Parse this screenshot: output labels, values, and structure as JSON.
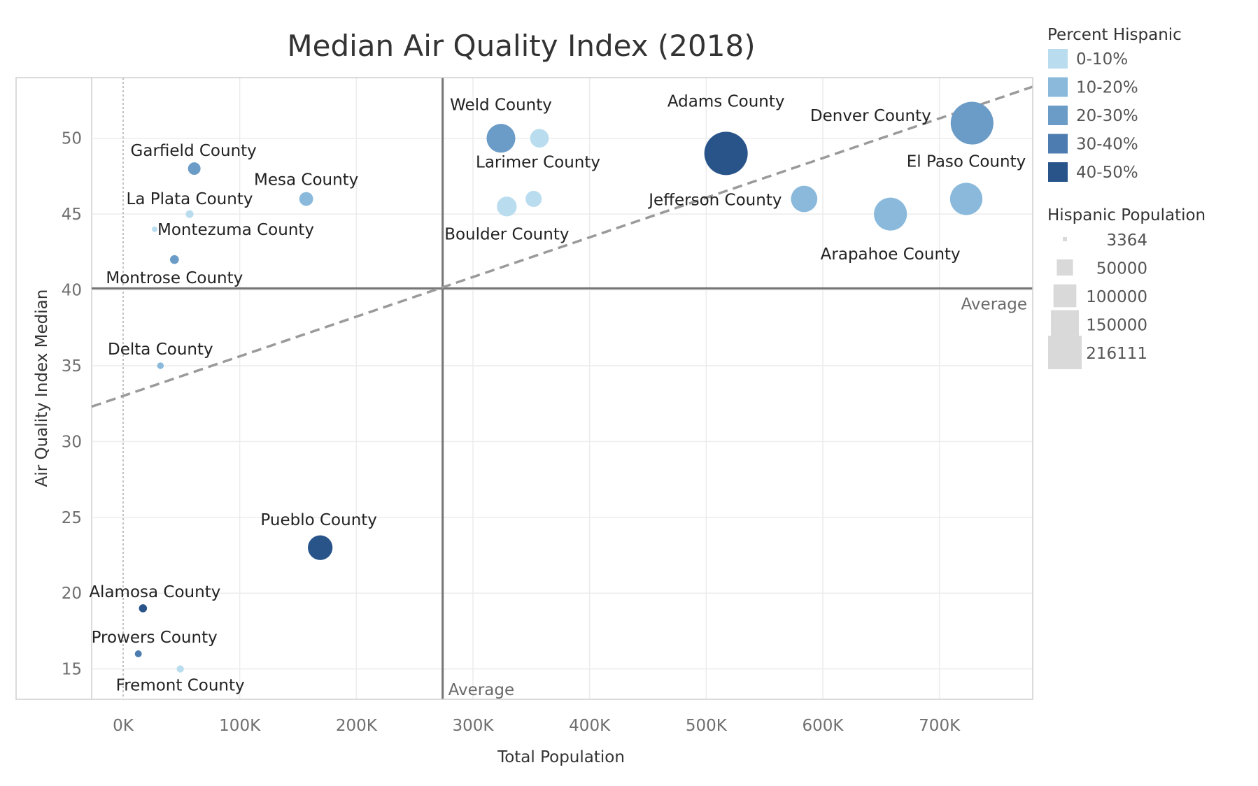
{
  "chart_data": {
    "type": "scatter",
    "title": "Median Air Quality Index (2018)",
    "xlabel": "Total Population",
    "ylabel": "Air Quality Index Median",
    "xlim": [
      -27000,
      780000
    ],
    "ylim": [
      13,
      54
    ],
    "x_ticks": [
      0,
      100000,
      200000,
      300000,
      400000,
      500000,
      600000,
      700000
    ],
    "x_tick_labels": [
      "0K",
      "100K",
      "200K",
      "300K",
      "400K",
      "500K",
      "600K",
      "700K"
    ],
    "y_ticks": [
      15,
      20,
      25,
      30,
      35,
      40,
      45,
      50
    ],
    "y_tick_labels": [
      "15",
      "20",
      "25",
      "30",
      "35",
      "40",
      "45",
      "50"
    ],
    "grid": true,
    "reference_lines": {
      "x_average": 274000,
      "y_average": 40.1,
      "x_label": "Average",
      "y_label": "Average"
    },
    "trend_line": {
      "x_start": -27000,
      "y_start": 32.3,
      "x_end": 780000,
      "y_end": 53.4,
      "style": "dashed"
    },
    "points": [
      {
        "label": "Weld County",
        "x": 324000,
        "y": 50,
        "hispanic_pct_band": "20-30%",
        "hispanic_pop": 95000
      },
      {
        "label": "Larimer County",
        "x": 357000,
        "y": 50,
        "hispanic_pct_band": "0-10%",
        "hispanic_pop": 40000
      },
      {
        "label": "Boulder County",
        "x": 329000,
        "y": 45.5,
        "hispanic_pct_band": "0-10%",
        "hispanic_pop": 45000
      },
      {
        "label": "",
        "x": 352000,
        "y": 46,
        "hispanic_pct_band": "0-10%",
        "hispanic_pop": 30000
      },
      {
        "label": "Adams County",
        "x": 517000,
        "y": 49,
        "hispanic_pct_band": "40-50%",
        "hispanic_pop": 216111
      },
      {
        "label": "Denver County",
        "x": 728000,
        "y": 51,
        "hispanic_pct_band": "20-30%",
        "hispanic_pop": 210000
      },
      {
        "label": "Jefferson County",
        "x": 584000,
        "y": 46,
        "hispanic_pct_band": "10-20%",
        "hispanic_pop": 80000
      },
      {
        "label": "El Paso County",
        "x": 723000,
        "y": 46,
        "hispanic_pct_band": "10-20%",
        "hispanic_pop": 120000
      },
      {
        "label": "Arapahoe County",
        "x": 658000,
        "y": 45,
        "hispanic_pct_band": "10-20%",
        "hispanic_pop": 125000
      },
      {
        "label": "Garfield County",
        "x": 61000,
        "y": 48,
        "hispanic_pct_band": "20-30%",
        "hispanic_pop": 18000
      },
      {
        "label": "Mesa County",
        "x": 157000,
        "y": 46,
        "hispanic_pct_band": "10-20%",
        "hispanic_pop": 22000
      },
      {
        "label": "La Plata County",
        "x": 57000,
        "y": 45,
        "hispanic_pct_band": "0-10%",
        "hispanic_pop": 7000
      },
      {
        "label": "Montezuma County",
        "x": 27000,
        "y": 44,
        "hispanic_pct_band": "0-10%",
        "hispanic_pop": 3364
      },
      {
        "label": "Montrose County",
        "x": 44000,
        "y": 42,
        "hispanic_pct_band": "20-30%",
        "hispanic_pop": 9000
      },
      {
        "label": "Delta County",
        "x": 32000,
        "y": 35,
        "hispanic_pct_band": "10-20%",
        "hispanic_pop": 5000
      },
      {
        "label": "Pueblo County",
        "x": 169000,
        "y": 23,
        "hispanic_pct_band": "40-50%",
        "hispanic_pop": 70000
      },
      {
        "label": "Alamosa County",
        "x": 17000,
        "y": 19,
        "hispanic_pct_band": "40-50%",
        "hispanic_pop": 7500
      },
      {
        "label": "Prowers County",
        "x": 13000,
        "y": 16,
        "hispanic_pct_band": "30-40%",
        "hispanic_pop": 5500
      },
      {
        "label": "Fremont County",
        "x": 49000,
        "y": 15,
        "hispanic_pct_band": "0-10%",
        "hispanic_pop": 6000
      }
    ],
    "legend": {
      "color_title": "Percent Hispanic",
      "color_bands": [
        {
          "label": "0-10%",
          "color": "#b9dcef"
        },
        {
          "label": "10-20%",
          "color": "#8ab9dc"
        },
        {
          "label": "20-30%",
          "color": "#6b9bc7"
        },
        {
          "label": "30-40%",
          "color": "#4c7cb0"
        },
        {
          "label": "40-50%",
          "color": "#28548a"
        }
      ],
      "size_title": "Hispanic Population",
      "size_values": [
        3364,
        50000,
        100000,
        150000,
        216111
      ],
      "placement": "right"
    }
  }
}
